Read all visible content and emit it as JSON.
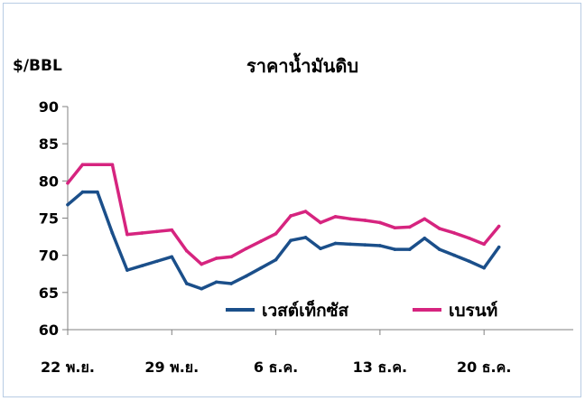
{
  "chart_data": {
    "type": "line",
    "title": "ราคาน้ำมันดิบ",
    "ylabel": "$/BBL",
    "xlabel": "",
    "ylim": [
      60,
      90
    ],
    "yticks": [
      60,
      65,
      70,
      75,
      80,
      85,
      90
    ],
    "xlim": [
      0,
      34
    ],
    "x_tick_positions": [
      0,
      7,
      14,
      21,
      28
    ],
    "x_tick_labels": [
      "22 พ.ย.",
      "29 พ.ย.",
      "6 ธ.ค.",
      "13 ธ.ค.",
      "20 ธ.ค."
    ],
    "grid": false,
    "legend_position": "bottom-center",
    "series": [
      {
        "name": "เวสต์เท็กซัส",
        "color": "#1b4f8a",
        "x": [
          0,
          1,
          2,
          3,
          4,
          5,
          6,
          7,
          8,
          9,
          10,
          11,
          12,
          13,
          14,
          15,
          16,
          17,
          18,
          19,
          20,
          21,
          22,
          23,
          24,
          25,
          26,
          27,
          28,
          29
        ],
        "values": [
          76.8,
          78.5,
          78.5,
          73.0,
          68.0,
          68.6,
          69.2,
          69.8,
          66.2,
          65.5,
          66.4,
          66.2,
          67.2,
          68.3,
          69.4,
          72.0,
          72.4,
          70.9,
          71.6,
          71.5,
          71.4,
          71.3,
          70.8,
          70.8,
          72.3,
          70.8,
          70.0,
          69.2,
          68.3,
          71.1
        ]
      },
      {
        "name": "เบรนท์",
        "color": "#d6247f",
        "x": [
          0,
          1,
          2,
          3,
          4,
          5,
          6,
          7,
          8,
          9,
          10,
          11,
          12,
          13,
          14,
          15,
          16,
          17,
          18,
          19,
          20,
          21,
          22,
          23,
          24,
          25,
          26,
          27,
          28,
          29
        ],
        "values": [
          79.7,
          82.2,
          82.2,
          82.2,
          72.8,
          73.0,
          73.2,
          73.4,
          70.6,
          68.8,
          69.6,
          69.8,
          70.9,
          71.9,
          72.9,
          75.3,
          75.9,
          74.4,
          75.2,
          74.9,
          74.7,
          74.4,
          73.7,
          73.8,
          74.9,
          73.6,
          73.0,
          72.3,
          71.5,
          73.9
        ]
      }
    ]
  }
}
